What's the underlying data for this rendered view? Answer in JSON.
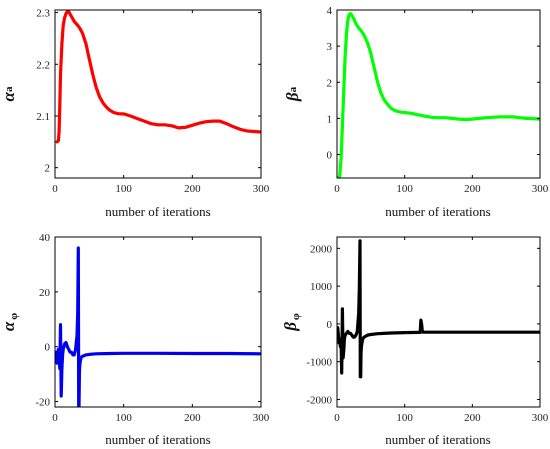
{
  "chart_data": [
    {
      "type": "line",
      "ylabel_main": "α",
      "ylabel_sub": "a",
      "xlabel": "number of iterations",
      "xlim": [
        0,
        300
      ],
      "ylim": [
        1.98,
        2.305
      ],
      "xticks": [
        0,
        100,
        200,
        300
      ],
      "yticks": [
        2,
        2.1,
        2.2,
        2.3
      ],
      "color": "#ff0000",
      "series": [
        {
          "x": [
            3,
            5,
            6,
            7,
            8,
            10,
            12,
            14,
            16,
            18,
            20,
            22,
            25,
            28,
            32,
            36,
            40,
            45,
            50,
            55,
            60,
            65,
            70,
            75,
            80,
            85,
            90,
            95,
            100,
            110,
            120,
            130,
            140,
            150,
            160,
            170,
            180,
            190,
            200,
            210,
            220,
            230,
            240,
            250,
            260,
            270,
            280,
            290,
            300
          ],
          "y": [
            2.05,
            2.052,
            2.07,
            2.12,
            2.18,
            2.24,
            2.275,
            2.29,
            2.298,
            2.302,
            2.302,
            2.297,
            2.29,
            2.283,
            2.277,
            2.27,
            2.26,
            2.24,
            2.21,
            2.18,
            2.155,
            2.137,
            2.125,
            2.117,
            2.111,
            2.107,
            2.105,
            2.104,
            2.104,
            2.1,
            2.095,
            2.09,
            2.085,
            2.083,
            2.083,
            2.081,
            2.077,
            2.078,
            2.082,
            2.086,
            2.089,
            2.09,
            2.09,
            2.085,
            2.079,
            2.074,
            2.071,
            2.07,
            2.069
          ]
        }
      ]
    },
    {
      "type": "line",
      "ylabel_main": "β",
      "ylabel_sub": "a",
      "xlabel": "number of iterations",
      "xlim": [
        0,
        300
      ],
      "ylim": [
        -0.65,
        4.0
      ],
      "xticks": [
        0,
        100,
        200,
        300
      ],
      "yticks": [
        0,
        1,
        2,
        3,
        4
      ],
      "color": "#00ff00",
      "series": [
        {
          "x": [
            3,
            4,
            6,
            8,
            10,
            12,
            14,
            16,
            18,
            20,
            22,
            25,
            28,
            32,
            36,
            40,
            45,
            50,
            55,
            60,
            65,
            70,
            75,
            80,
            85,
            90,
            95,
            100,
            110,
            120,
            130,
            140,
            150,
            160,
            170,
            180,
            190,
            200,
            210,
            220,
            230,
            240,
            250,
            260,
            270,
            280,
            290,
            300
          ],
          "y": [
            -0.62,
            -0.6,
            -0.1,
            0.8,
            1.8,
            2.7,
            3.35,
            3.72,
            3.88,
            3.9,
            3.85,
            3.75,
            3.62,
            3.5,
            3.42,
            3.3,
            3.1,
            2.8,
            2.4,
            2.0,
            1.7,
            1.5,
            1.38,
            1.28,
            1.22,
            1.19,
            1.17,
            1.16,
            1.14,
            1.1,
            1.06,
            1.03,
            1.02,
            1.02,
            1.0,
            0.98,
            0.97,
            0.98,
            1.0,
            1.02,
            1.03,
            1.04,
            1.04,
            1.04,
            1.02,
            1.0,
            0.99,
            0.98
          ]
        }
      ]
    },
    {
      "type": "line",
      "ylabel_main": "α",
      "ylabel_sub": "φ",
      "xlabel": "number of iterations",
      "xlim": [
        0,
        300
      ],
      "ylim": [
        -22,
        40
      ],
      "xticks": [
        0,
        100,
        200,
        300
      ],
      "yticks": [
        -20,
        0,
        20,
        40
      ],
      "color": "#0000ee",
      "series": [
        {
          "x": [
            1,
            2,
            3,
            4,
            5,
            6,
            7,
            8,
            9,
            10,
            11,
            12,
            14,
            16,
            18,
            20,
            22,
            24,
            26,
            28,
            30,
            32,
            33,
            34,
            34.5,
            35,
            35.5,
            36,
            37,
            38,
            40,
            45,
            50,
            60,
            80,
            100,
            150,
            200,
            250,
            300
          ],
          "y": [
            -2,
            -3,
            -6,
            -2,
            -1,
            -3,
            -8,
            8,
            -18,
            -8,
            -3,
            -1,
            1,
            1.5,
            0,
            -1,
            -2,
            -2,
            -3,
            -3,
            -1,
            4,
            12,
            36,
            -22,
            -22,
            -10,
            -7,
            -5,
            -4,
            -3.5,
            -3,
            -2.8,
            -2.6,
            -2.5,
            -2.4,
            -2.4,
            -2.5,
            -2.5,
            -2.6
          ]
        }
      ]
    },
    {
      "type": "line",
      "ylabel_main": "β",
      "ylabel_sub": "φ",
      "xlabel": "number of iterations",
      "xlim": [
        0,
        300
      ],
      "ylim": [
        -2200,
        2300
      ],
      "xticks": [
        0,
        100,
        200,
        300
      ],
      "yticks": [
        -2000,
        -1000,
        0,
        1000,
        2000
      ],
      "color": "#000000",
      "series": [
        {
          "x": [
            1,
            2,
            3,
            4,
            5,
            6,
            7,
            8,
            9,
            10,
            11,
            12,
            14,
            16,
            18,
            20,
            22,
            24,
            26,
            28,
            30,
            32,
            33,
            34,
            34.5,
            35,
            35.5,
            36,
            37,
            38,
            40,
            45,
            50,
            60,
            80,
            100,
            120,
            123,
            124,
            125,
            126,
            127,
            130,
            150,
            200,
            250,
            300
          ],
          "y": [
            -100,
            -300,
            -500,
            -400,
            -600,
            -500,
            -1300,
            400,
            -900,
            -700,
            -400,
            -300,
            -250,
            -200,
            -250,
            -250,
            -300,
            -350,
            -350,
            -300,
            -200,
            300,
            900,
            2200,
            -1400,
            -1400,
            -800,
            -600,
            -500,
            -400,
            -350,
            -300,
            -280,
            -260,
            -240,
            -230,
            -225,
            -225,
            100,
            0,
            -200,
            -220,
            -220,
            -220,
            -220,
            -220,
            -220
          ]
        }
      ]
    }
  ]
}
